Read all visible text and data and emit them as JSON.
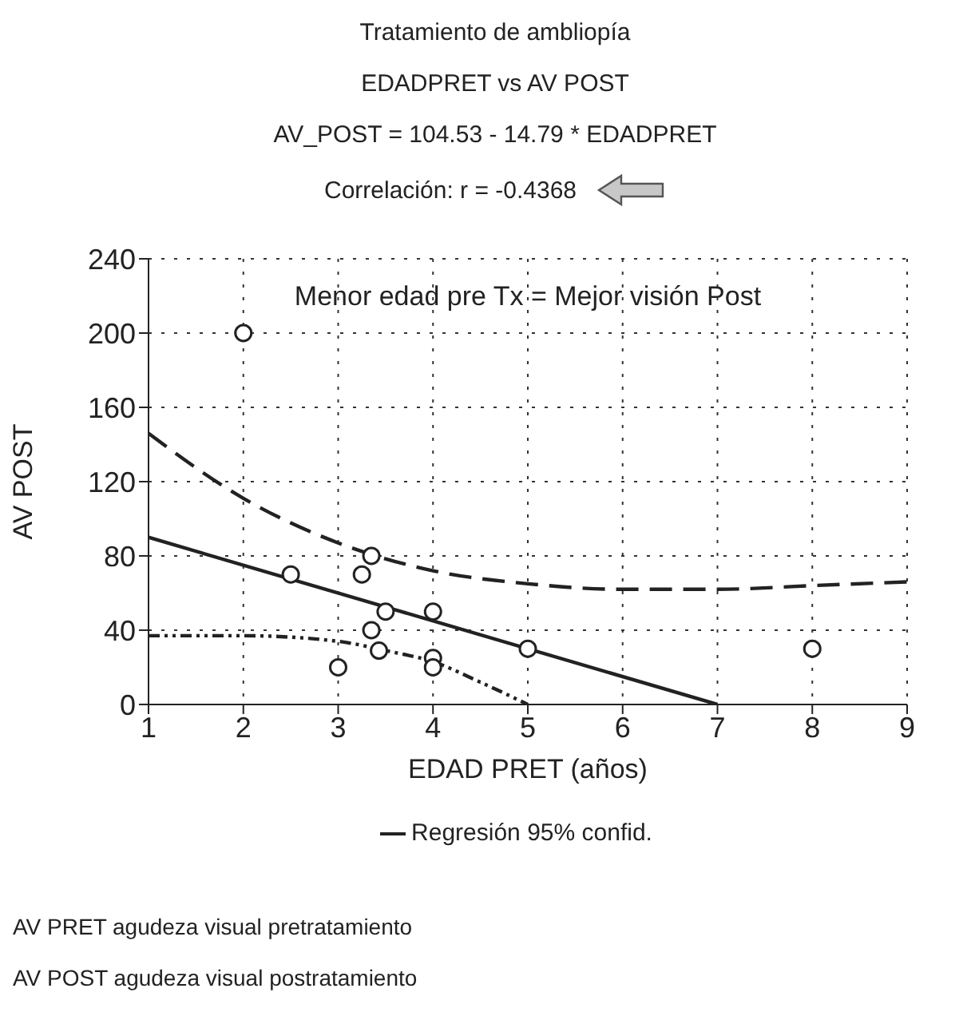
{
  "chart_data": {
    "type": "scatter",
    "title": "Tratamiento de ambliopía",
    "subtitle": "EDADPRET vs AV POST",
    "xlabel": "EDAD PRET (años)",
    "ylabel": "AV POST",
    "annotations": [
      "AV_POST = 104.53 - 14.79 * EDADPRET",
      "Correlación: r = -0.4368",
      "Menor edad pre Tx = Mejor visión Post",
      "AV PRET agudeza visual pretratamiento",
      "AV POST agudeza visual postratamiento"
    ],
    "xlim": [
      1,
      9
    ],
    "xticks": [
      1,
      2,
      3,
      4,
      5,
      6,
      7,
      8,
      9
    ],
    "ylim": [
      0,
      240
    ],
    "yticks": [
      0,
      40,
      80,
      120,
      160,
      200,
      240
    ],
    "grid": true,
    "legend": "bottom",
    "series": [
      {
        "color": "#222222",
        "marker": "circle",
        "x": [
          2,
          2.5,
          3,
          3.25,
          3.35,
          3.35,
          3.43,
          3.5,
          4,
          4,
          4,
          5,
          8
        ],
        "values": [
          200,
          70,
          20,
          70,
          80,
          40,
          29,
          50,
          50,
          25,
          20,
          30,
          30
        ]
      },
      {
        "type": "line",
        "name": "Regresión 95% confid.",
        "color": "#222222",
        "marker": "none",
        "line_style": "solid",
        "x": [
          1,
          7
        ],
        "values": [
          90,
          0
        ]
      },
      {
        "type": "line",
        "color": "#222222",
        "marker": "none",
        "line_style": "dashed",
        "x": [
          1,
          2,
          3,
          4,
          5,
          6,
          7,
          8,
          9
        ],
        "values": [
          146,
          111,
          87,
          72,
          65,
          62,
          62,
          64,
          66
        ]
      },
      {
        "type": "line",
        "color": "#222222",
        "marker": "none",
        "line_style": "dotted",
        "x": [
          1,
          2,
          3,
          3.5,
          4,
          4.5,
          5
        ],
        "values": [
          37,
          37,
          34,
          29,
          23,
          12,
          0
        ]
      }
    ]
  }
}
